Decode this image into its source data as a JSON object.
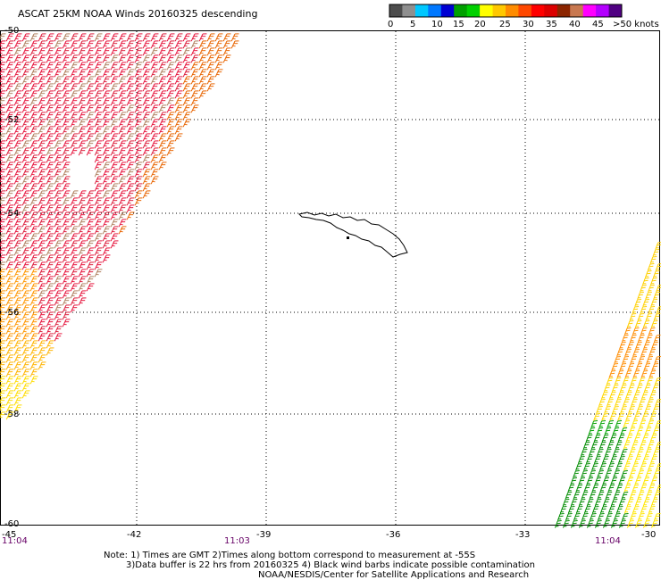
{
  "title": "ASCAT 25KM NOAA Winds 20160325 descending",
  "legend": {
    "colors": [
      "#4d4d4d",
      "#8f8f8f",
      "#00c8ff",
      "#0078ff",
      "#0000d2",
      "#00a000",
      "#00d000",
      "#ffff00",
      "#ffc800",
      "#ff8c00",
      "#ff4800",
      "#ff0000",
      "#dc0000",
      "#8b2500",
      "#c87850",
      "#ff00ff",
      "#b400ff",
      "#500082"
    ],
    "labels": [
      "0",
      "5",
      "10",
      "15",
      "20",
      "25",
      "30",
      "35",
      "40",
      "45",
      ">50 knots"
    ]
  },
  "lon_labels": [
    "-45",
    "-42",
    "-39",
    "-36",
    "-33",
    "-30"
  ],
  "lat_labels": [
    "-50",
    "-52",
    "-54",
    "-56",
    "-58",
    "-60"
  ],
  "time_labels": [
    "11:04",
    "11:03",
    "11:04"
  ],
  "note_line1": "Note: 1) Times are GMT 2)Times along bottom correspond to measurement at -55S",
  "note_line2": "3)Data buffer is 22 hrs from 20160325 4) Black wind barbs indicate possible contamination",
  "credit": "NOAA/NESDIS/Center for Satellite Applications and Research"
}
